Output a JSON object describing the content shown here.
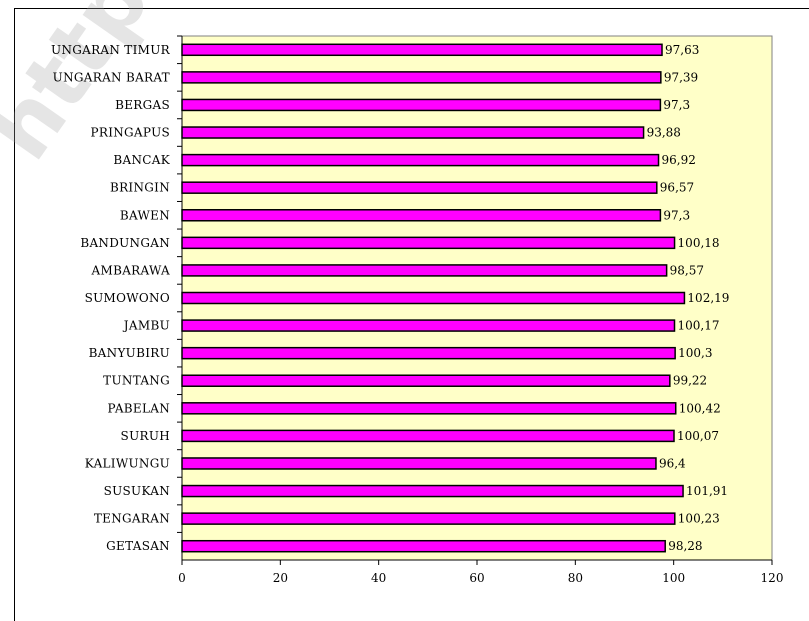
{
  "watermark": "https://semarangkab",
  "chart_data": {
    "type": "bar",
    "orientation": "horizontal",
    "categories": [
      "UNGARAN TIMUR",
      "UNGARAN BARAT",
      "BERGAS",
      "PRINGAPUS",
      "BANCAK",
      "BRINGIN",
      "BAWEN",
      "BANDUNGAN",
      "AMBARAWA",
      "SUMOWONO",
      "JAMBU",
      "BANYUBIRU",
      "TUNTANG",
      "PABELAN",
      "SURUH",
      "KALIWUNGU",
      "SUSUKAN",
      "TENGARAN",
      "GETASAN"
    ],
    "values": [
      97.63,
      97.39,
      97.3,
      93.88,
      96.92,
      96.57,
      97.3,
      100.18,
      98.57,
      102.19,
      100.17,
      100.3,
      99.22,
      100.42,
      100.07,
      96.4,
      101.91,
      100.23,
      98.28
    ],
    "value_labels": [
      "97,63",
      "97,39",
      "97,3",
      "93,88",
      "96,92",
      "96,57",
      "97,3",
      "100,18",
      "98,57",
      "102,19",
      "100,17",
      "100,3",
      "99,22",
      "100,42",
      "100,07",
      "96,4",
      "101,91",
      "100,23",
      "98,28"
    ],
    "xlim": [
      0,
      120
    ],
    "xticks": [
      "0",
      "20",
      "40",
      "60",
      "80",
      "100",
      "120"
    ],
    "title": "",
    "xlabel": "",
    "ylabel": "",
    "colors": {
      "bar": "#ff00ff",
      "bar_border": "#000000",
      "plot_background": "#ffffc8",
      "axis": "#000000"
    },
    "grid": false,
    "legend": "none"
  }
}
